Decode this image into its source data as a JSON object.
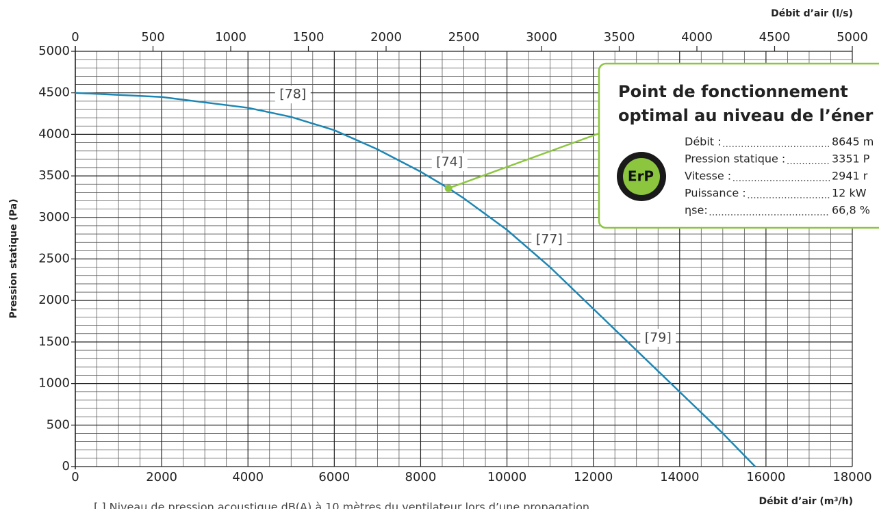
{
  "chart_data": {
    "type": "line",
    "x_label": "Débit d’air (m³/h)",
    "x2_label": "Débit d’air (l/s)",
    "y_label": "Pression statique (Pa)",
    "xlim": [
      0,
      18000
    ],
    "xticks": [
      0,
      2000,
      4000,
      6000,
      8000,
      10000,
      12000,
      14000,
      16000,
      18000
    ],
    "x2lim": [
      0,
      5000
    ],
    "x2ticks": [
      0,
      500,
      1000,
      1500,
      2000,
      2500,
      3000,
      3500,
      4000,
      4500,
      5000
    ],
    "ylim": [
      0,
      5000
    ],
    "yticks": [
      0,
      500,
      1000,
      1500,
      2000,
      2500,
      3000,
      3500,
      4000,
      4500,
      5000
    ],
    "grid": true,
    "series": [
      {
        "color": "#1b86b4",
        "x": [
          0,
          2000,
          4000,
          5000,
          6000,
          7000,
          8000,
          8645,
          9000,
          10000,
          11000,
          12000,
          13000,
          14000,
          15000,
          15750
        ],
        "values": [
          4500,
          4450,
          4320,
          4210,
          4050,
          3820,
          3550,
          3351,
          3230,
          2850,
          2400,
          1900,
          1400,
          900,
          400,
          0
        ]
      }
    ],
    "annotations": [
      {
        "text": "[78]",
        "x": 5040,
        "y": 4480
      },
      {
        "text": "[74]",
        "x": 8670,
        "y": 3665
      },
      {
        "text": "[77]",
        "x": 10980,
        "y": 2735
      },
      {
        "text": "[79]",
        "x": 13500,
        "y": 1550
      }
    ],
    "operating_point": {
      "x": 8645,
      "y": 3351,
      "color": "#8cc63f"
    },
    "info_box": {
      "title": [
        "Point de fonctionnement",
        "optimal au niveau de l’éner"
      ],
      "badge": "ErP",
      "rows": [
        {
          "label": "Débit :",
          "value": "8645 m"
        },
        {
          "label": "Pression statique :",
          "value": "3351 P"
        },
        {
          "label": "Vitesse :",
          "value": "2941 r"
        },
        {
          "label": "Puissance :",
          "value": "12 kW"
        },
        {
          "label": "ηse:",
          "value": "66,8 %"
        }
      ]
    },
    "footnote": "[ ]  Niveau de pression acoustique dB(A) à 10 mètres du ventilateur lors d’une propagation"
  }
}
